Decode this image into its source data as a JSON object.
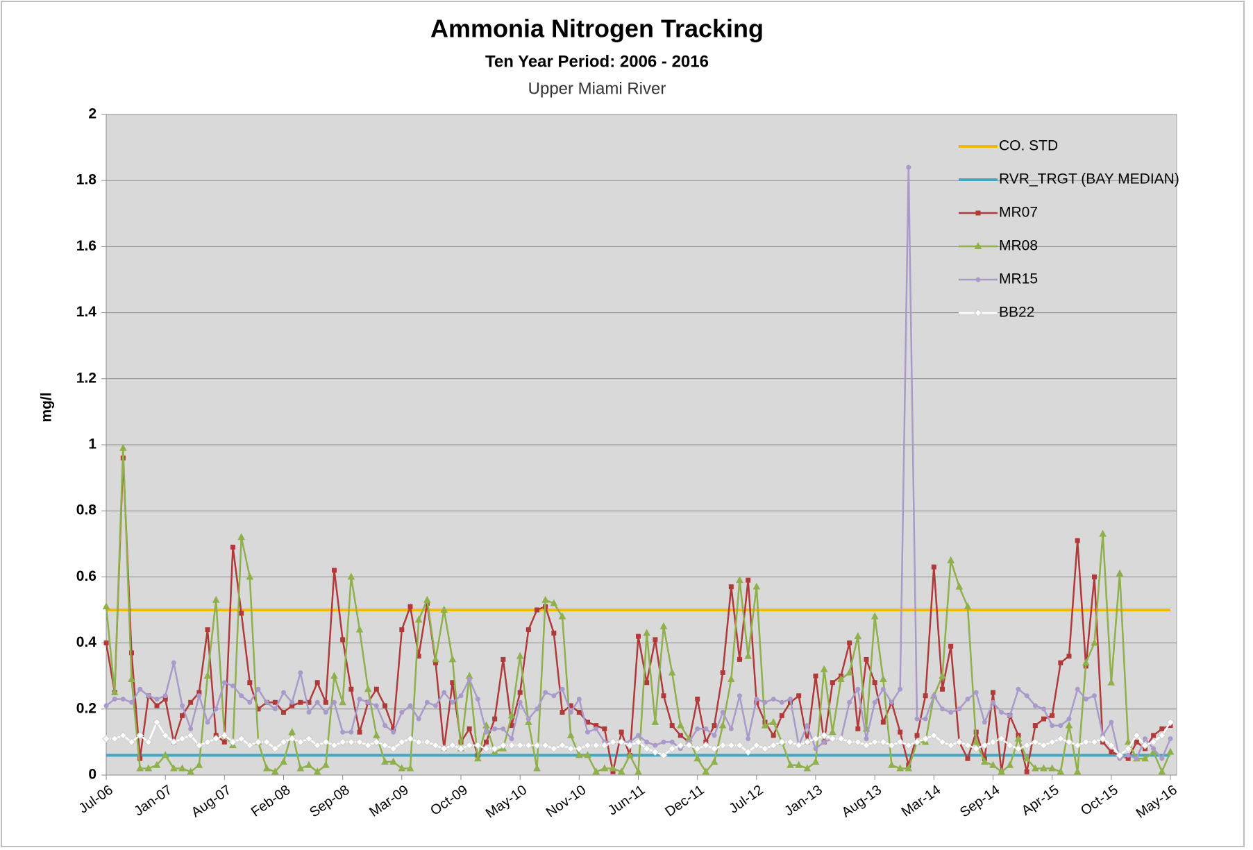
{
  "chart_data": {
    "type": "line",
    "title": "Ammonia Nitrogen Tracking",
    "subtitle": "Ten Year Period:  2006 - 2016",
    "site": "Upper Miami River",
    "ylabel": "mg/l",
    "ylim": [
      0,
      2
    ],
    "yticks": [
      0,
      0.2,
      0.4,
      0.6,
      0.8,
      1,
      1.2,
      1.4,
      1.6,
      1.8,
      2
    ],
    "grid": true,
    "legend": "top-right",
    "categories": [
      "Jul-06",
      null,
      null,
      null,
      null,
      null,
      null,
      "Jan-07",
      null,
      null,
      null,
      null,
      null,
      null,
      "Aug-07",
      null,
      null,
      null,
      null,
      null,
      null,
      "Feb-08",
      null,
      null,
      null,
      null,
      null,
      null,
      "Sep-08",
      null,
      null,
      null,
      null,
      null,
      null,
      "Mar-09",
      null,
      null,
      null,
      null,
      null,
      null,
      "Oct-09",
      null,
      null,
      null,
      null,
      null,
      null,
      "May-10",
      null,
      null,
      null,
      null,
      null,
      null,
      "Nov-10",
      null,
      null,
      null,
      null,
      null,
      null,
      "Jun-11",
      null,
      null,
      null,
      null,
      null,
      null,
      "Dec-11",
      null,
      null,
      null,
      null,
      null,
      null,
      "Jul-12",
      null,
      null,
      null,
      null,
      null,
      null,
      "Jan-13",
      null,
      null,
      null,
      null,
      null,
      null,
      "Aug-13",
      null,
      null,
      null,
      null,
      null,
      null,
      "Mar-14",
      null,
      null,
      null,
      null,
      null,
      null,
      "Sep-14",
      null,
      null,
      null,
      null,
      null,
      null,
      "Apr-15",
      null,
      null,
      null,
      null,
      null,
      null,
      "Oct-15",
      null,
      null,
      null,
      null,
      null,
      null,
      "May-16"
    ],
    "reference_lines": [
      {
        "name": "CO. STD",
        "color": "#f5b800",
        "value": 0.5
      },
      {
        "name": "RVR_TRGT (BAY MEDIAN)",
        "color": "#3fa9c4",
        "value": 0.06
      }
    ],
    "series": [
      {
        "name": "MR07",
        "color": "#b03a3a",
        "marker": "square",
        "values": [
          0.4,
          0.25,
          0.96,
          0.37,
          0.05,
          0.24,
          0.21,
          0.23,
          0.1,
          0.18,
          0.22,
          0.25,
          0.44,
          0.12,
          0.1,
          0.69,
          0.49,
          0.28,
          0.2,
          0.22,
          0.22,
          0.19,
          0.21,
          0.22,
          0.22,
          0.28,
          0.22,
          0.62,
          0.41,
          0.26,
          0.13,
          0.22,
          0.26,
          0.21,
          0.14,
          0.44,
          0.51,
          0.36,
          0.52,
          0.34,
          0.08,
          0.28,
          0.1,
          0.14,
          0.06,
          0.1,
          0.17,
          0.35,
          0.15,
          0.25,
          0.44,
          0.5,
          0.51,
          0.43,
          0.19,
          0.21,
          0.19,
          0.16,
          0.15,
          0.14,
          0.01,
          0.13,
          0.06,
          0.42,
          0.28,
          0.41,
          0.24,
          0.15,
          0.12,
          0.1,
          0.23,
          0.1,
          0.15,
          0.31,
          0.57,
          0.35,
          0.59,
          0.22,
          0.16,
          0.12,
          0.18,
          0.22,
          0.24,
          0.1,
          0.3,
          0.1,
          0.28,
          0.3,
          0.4,
          0.14,
          0.35,
          0.28,
          0.16,
          0.22,
          0.13,
          0.03,
          0.12,
          0.24,
          0.63,
          0.26,
          0.39,
          0.1,
          0.05,
          0.13,
          0.05,
          0.25,
          0.01,
          0.18,
          0.12,
          0.01,
          0.15,
          0.17,
          0.18,
          0.34,
          0.36,
          0.71,
          0.33,
          0.6,
          0.1,
          0.07,
          0.06,
          0.05,
          0.1,
          0.08,
          0.12,
          0.14,
          0.15
        ]
      },
      {
        "name": "MR08",
        "color": "#8fb04b",
        "marker": "triangle",
        "values": [
          0.51,
          0.25,
          0.99,
          0.29,
          0.02,
          0.02,
          0.03,
          0.06,
          0.02,
          0.02,
          0.01,
          0.03,
          0.3,
          0.53,
          0.12,
          0.09,
          0.72,
          0.6,
          0.1,
          0.02,
          0.01,
          0.04,
          0.13,
          0.02,
          0.03,
          0.01,
          0.03,
          0.3,
          0.22,
          0.6,
          0.44,
          0.26,
          0.12,
          0.04,
          0.04,
          0.02,
          0.02,
          0.47,
          0.53,
          0.35,
          0.5,
          0.35,
          0.08,
          0.3,
          0.05,
          0.15,
          0.07,
          0.08,
          0.18,
          0.36,
          0.16,
          0.02,
          0.53,
          0.52,
          0.48,
          0.12,
          0.06,
          0.06,
          0.01,
          0.02,
          0.02,
          0.01,
          0.06,
          0.01,
          0.43,
          0.16,
          0.45,
          0.31,
          0.15,
          0.11,
          0.05,
          0.01,
          0.04,
          0.15,
          0.29,
          0.59,
          0.36,
          0.57,
          0.15,
          0.16,
          0.1,
          0.03,
          0.03,
          0.02,
          0.04,
          0.32,
          0.13,
          0.29,
          0.31,
          0.42,
          0.14,
          0.48,
          0.29,
          0.03,
          0.02,
          0.02,
          0.1,
          0.1,
          0.24,
          0.3,
          0.65,
          0.57,
          0.51,
          0.1,
          0.04,
          0.03,
          0.01,
          0.03,
          0.11,
          0.05,
          0.02,
          0.02,
          0.02,
          0.01,
          0.15,
          0.01,
          0.34,
          0.4,
          0.73,
          0.28,
          0.61,
          0.1,
          0.05,
          0.05,
          0.07,
          0.01,
          0.07
        ]
      },
      {
        "name": "MR15",
        "color": "#a99ac9",
        "marker": "circle",
        "values": [
          0.21,
          0.23,
          0.23,
          0.22,
          0.26,
          0.24,
          0.23,
          0.24,
          0.34,
          0.21,
          0.14,
          0.24,
          0.16,
          0.2,
          0.28,
          0.27,
          0.24,
          0.22,
          0.26,
          0.22,
          0.2,
          0.25,
          0.22,
          0.31,
          0.19,
          0.22,
          0.19,
          0.22,
          0.13,
          0.13,
          0.23,
          0.22,
          0.21,
          0.15,
          0.13,
          0.19,
          0.21,
          0.17,
          0.22,
          0.21,
          0.25,
          0.22,
          0.24,
          0.29,
          0.23,
          0.13,
          0.14,
          0.14,
          0.11,
          0.22,
          0.17,
          0.2,
          0.25,
          0.24,
          0.26,
          0.19,
          0.23,
          0.13,
          0.14,
          0.1,
          0.1,
          0.1,
          0.1,
          0.12,
          0.1,
          0.09,
          0.1,
          0.1,
          0.08,
          0.1,
          0.14,
          0.14,
          0.12,
          0.19,
          0.14,
          0.24,
          0.11,
          0.23,
          0.22,
          0.23,
          0.22,
          0.23,
          0.09,
          0.15,
          0.08,
          0.1,
          0.11,
          0.11,
          0.22,
          0.26,
          0.11,
          0.22,
          0.26,
          0.22,
          0.26,
          1.84,
          0.17,
          0.17,
          0.24,
          0.2,
          0.19,
          0.2,
          0.23,
          0.25,
          0.16,
          0.22,
          0.19,
          0.18,
          0.26,
          0.24,
          0.21,
          0.2,
          0.15,
          0.15,
          0.17,
          0.26,
          0.23,
          0.24,
          0.12,
          0.16,
          0.05,
          0.06,
          0.05,
          0.11,
          0.08,
          0.05,
          0.11
        ]
      },
      {
        "name": "BB22",
        "color": "#ffffff",
        "marker": "diamond",
        "values": [
          0.11,
          0.11,
          0.12,
          0.1,
          0.12,
          0.1,
          0.16,
          0.12,
          0.1,
          0.11,
          0.12,
          0.09,
          0.1,
          0.11,
          0.12,
          0.1,
          0.11,
          0.09,
          0.1,
          0.1,
          0.08,
          0.1,
          0.11,
          0.1,
          0.11,
          0.09,
          0.1,
          0.09,
          0.1,
          0.1,
          0.1,
          0.09,
          0.1,
          0.09,
          0.08,
          0.1,
          0.11,
          0.1,
          0.1,
          0.09,
          0.08,
          0.09,
          0.08,
          0.09,
          0.09,
          0.08,
          0.08,
          0.09,
          0.09,
          0.09,
          0.09,
          0.09,
          0.09,
          0.08,
          0.09,
          0.08,
          0.08,
          0.09,
          0.09,
          0.09,
          0.1,
          0.1,
          0.09,
          0.1,
          0.08,
          0.07,
          0.06,
          0.08,
          0.09,
          0.09,
          0.08,
          0.09,
          0.08,
          0.09,
          0.09,
          0.09,
          0.07,
          0.09,
          0.08,
          0.09,
          0.1,
          0.1,
          0.09,
          0.1,
          0.11,
          0.12,
          0.11,
          0.11,
          0.1,
          0.1,
          0.09,
          0.1,
          0.1,
          0.09,
          0.1,
          0.09,
          0.1,
          0.11,
          0.12,
          0.1,
          0.09,
          0.1,
          0.09,
          0.08,
          0.09,
          0.1,
          0.11,
          0.09,
          0.08,
          0.09,
          0.1,
          0.09,
          0.1,
          0.11,
          0.1,
          0.09,
          0.1,
          0.1,
          0.11,
          0.09,
          0.06,
          0.08,
          0.12,
          0.09,
          0.1,
          0.12,
          0.16
        ]
      }
    ]
  }
}
